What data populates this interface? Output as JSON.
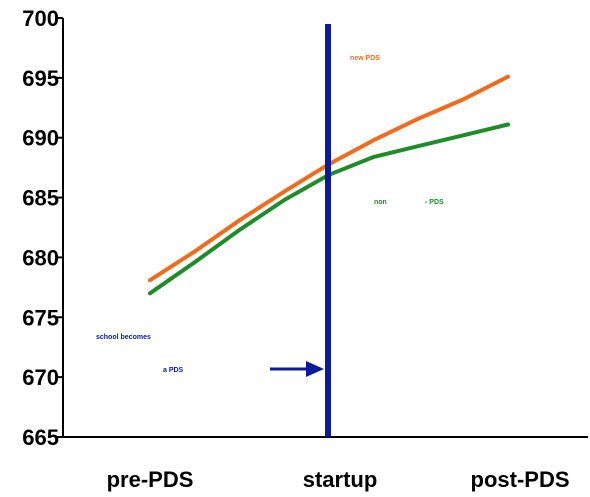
{
  "chart_data": {
    "type": "line",
    "categories": [
      "pre-PDS",
      "startup",
      "post-PDS"
    ],
    "y_ticks": [
      "700",
      "695",
      "690",
      "685",
      "680",
      "675",
      "670",
      "665"
    ],
    "ylim": [
      665,
      700
    ],
    "grid": false,
    "series": [
      {
        "name": "new PDS",
        "color": "#f26b1d",
        "x": [
          0,
          0.1,
          0.2,
          0.3,
          0.4,
          0.5,
          0.6,
          0.7,
          0.8,
          0.9,
          1.0
        ],
        "values": [
          678.1,
          680.5,
          683.1,
          685.5,
          687.8,
          689.8,
          691.6,
          693.2,
          695.1,
          695.1,
          695.1
        ]
      },
      {
        "name": "non - PDS",
        "color": "#1e8c28",
        "x": [
          0,
          0.1,
          0.2,
          0.3,
          0.4,
          0.5,
          0.6,
          0.7,
          0.8,
          0.9,
          1.0
        ],
        "values": [
          677.0,
          679.6,
          682.3,
          684.8,
          686.9,
          688.4,
          689.3,
          690.2,
          691.1,
          691.1,
          691.1
        ]
      }
    ],
    "annotations": {
      "new_pds_label": "new PDS",
      "non_label": "non",
      "dash_pds_label": "- PDS",
      "school_becomes": "school becomes",
      "a_pds": "a PDS"
    },
    "marker_line": {
      "category": "startup",
      "color": "#0a1a9a"
    },
    "arrow_color": "#0a1a9a"
  }
}
